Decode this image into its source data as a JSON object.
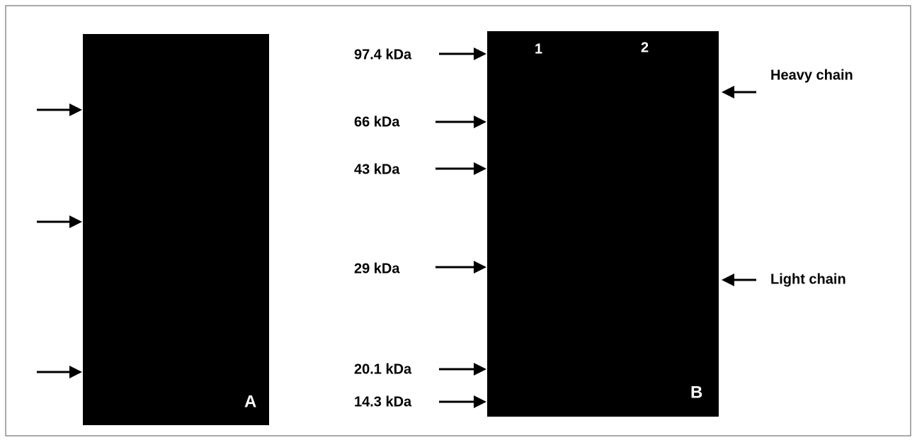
{
  "panel_a": {
    "label": "A"
  },
  "panel_b": {
    "label": "B",
    "lanes": [
      "1",
      "2"
    ],
    "markers": [
      "97.4 kDa",
      "66 kDa",
      "43 kDa",
      "29 kDa",
      "20.1 kDa",
      "14.3 kDa"
    ],
    "annotations": [
      "Heavy chain",
      "Light chain"
    ]
  }
}
